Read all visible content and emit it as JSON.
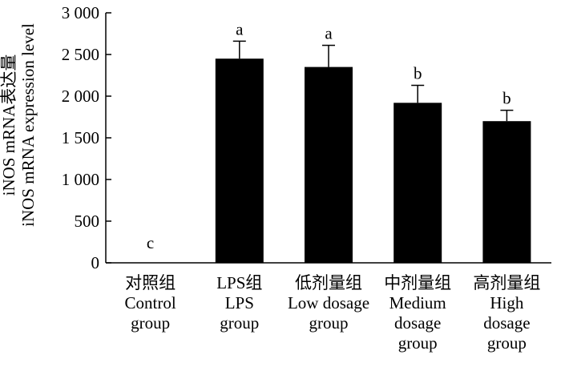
{
  "chart_data": {
    "type": "bar",
    "categories": [
      [
        "对照组",
        "Control",
        "group"
      ],
      [
        "LPS组",
        "LPS",
        "group"
      ],
      [
        "低剂量组",
        "Low dosage",
        "group"
      ],
      [
        "中剂量组",
        "Medium",
        "dosage",
        "group"
      ],
      [
        "高剂量组",
        "High",
        "dosage",
        "group"
      ]
    ],
    "values": [
      0,
      2450,
      2350,
      1920,
      1700
    ],
    "errors": [
      0,
      210,
      260,
      210,
      130
    ],
    "significance": [
      "c",
      "a",
      "a",
      "b",
      "b"
    ],
    "ylabel": [
      "iNOS mRNA表达量",
      "iNOS mRNA expression  level"
    ],
    "ylim": [
      0,
      3000
    ],
    "yticks": [
      0,
      500,
      1000,
      1500,
      2000,
      2500,
      3000
    ],
    "ytick_labels": [
      "0",
      "500",
      "1 000",
      "1 500",
      "2 000",
      "2 500",
      "3 000"
    ],
    "bar_color": "#000000",
    "grid": false
  }
}
